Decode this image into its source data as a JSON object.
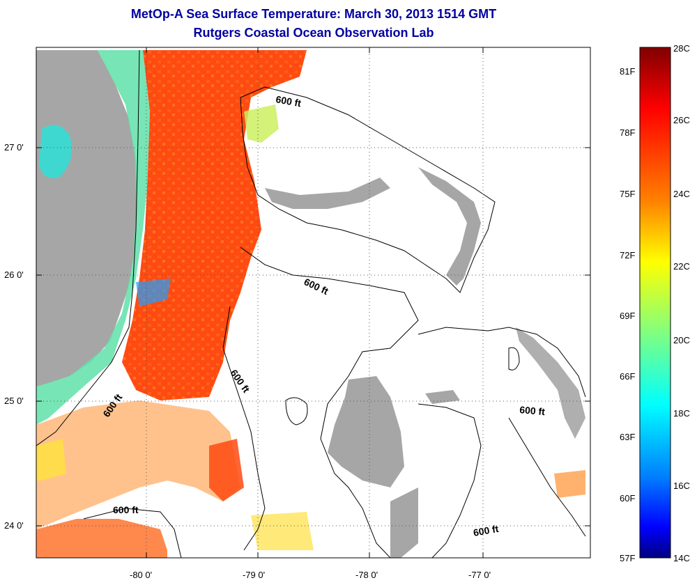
{
  "header": {
    "title": "MetOp-A Sea Surface Temperature:  March 30, 2013 1514 GMT",
    "subtitle": "Rutgers Coastal Ocean Observation Lab"
  },
  "axes": {
    "x_ticks": [
      "-80 0'",
      "-79 0'",
      "-78 0'",
      "-77 0'"
    ],
    "y_ticks": [
      "27 0'",
      "26 0'",
      "25 0'",
      "24 0'"
    ]
  },
  "contour_label": "600 ft",
  "colorbar": {
    "celsius_labels": [
      "28C",
      "26C",
      "24C",
      "22C",
      "20C",
      "18C",
      "16C",
      "14C"
    ],
    "fahrenheit_labels": [
      "81F",
      "78F",
      "75F",
      "72F",
      "69F",
      "66F",
      "63F",
      "60F",
      "57F"
    ],
    "colors": [
      "#800000",
      "#ff0000",
      "#ff8000",
      "#ffff00",
      "#80ff80",
      "#00ffff",
      "#0080ff",
      "#0000ff",
      "#000080"
    ]
  },
  "colors": {
    "land": "#a6a6a6",
    "warm_water": "#ff4a12",
    "coastal_water": "#3fe3b8",
    "title": "#0000a0"
  }
}
